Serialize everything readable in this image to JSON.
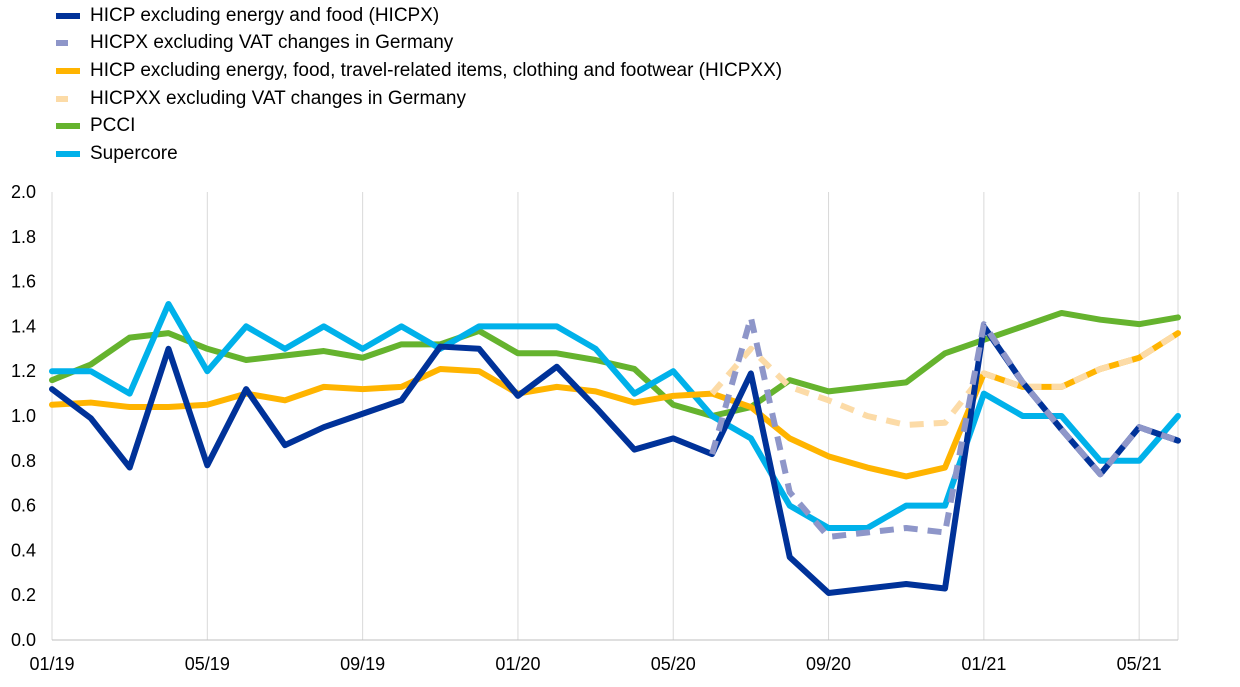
{
  "chart_data": {
    "type": "line",
    "title": "",
    "xlabel": "",
    "ylabel": "",
    "ylim": [
      0,
      2
    ],
    "yticks": [
      "0.0",
      "0.2",
      "0.4",
      "0.6",
      "0.8",
      "1.0",
      "1.2",
      "1.4",
      "1.6",
      "1.8",
      "2.0"
    ],
    "x": [
      "01/19",
      "02/19",
      "03/19",
      "04/19",
      "05/19",
      "06/19",
      "07/19",
      "08/19",
      "09/19",
      "10/19",
      "11/19",
      "12/19",
      "01/20",
      "02/20",
      "03/20",
      "04/20",
      "05/20",
      "06/20",
      "07/20",
      "08/20",
      "09/20",
      "10/20",
      "11/20",
      "12/20",
      "01/21",
      "02/21",
      "03/21",
      "04/21",
      "05/21",
      "06/21"
    ],
    "xtick_labels": [
      "01/19",
      "05/19",
      "09/19",
      "01/20",
      "05/20",
      "09/20",
      "01/21",
      "05/21"
    ],
    "grid": "vertical",
    "legend_position": "top-left",
    "series": [
      {
        "name": "HICP excluding energy and food (HICPX)",
        "color": "#003299",
        "style": "solid",
        "values": [
          1.12,
          0.99,
          0.77,
          1.3,
          0.78,
          1.12,
          0.87,
          0.95,
          1.01,
          1.07,
          1.31,
          1.3,
          1.09,
          1.22,
          1.04,
          0.85,
          0.9,
          0.83,
          1.19,
          0.37,
          0.21,
          0.23,
          0.25,
          0.23,
          1.4,
          1.15,
          0.94,
          0.74,
          0.95,
          0.89
        ]
      },
      {
        "name": "HICPX excluding VAT changes in Germany",
        "color": "#8e96c9",
        "style": "dashed",
        "values": [
          null,
          null,
          null,
          null,
          null,
          null,
          null,
          null,
          null,
          null,
          null,
          null,
          null,
          null,
          null,
          null,
          null,
          0.83,
          1.44,
          0.66,
          0.46,
          0.48,
          0.5,
          0.48,
          1.41,
          1.15,
          0.94,
          0.74,
          0.95,
          0.89
        ]
      },
      {
        "name": "HICP excluding energy, food, travel-related items, clothing and footwear (HICPXX)",
        "color": "#ffb400",
        "style": "solid",
        "values": [
          1.05,
          1.06,
          1.04,
          1.04,
          1.05,
          1.1,
          1.07,
          1.13,
          1.12,
          1.13,
          1.21,
          1.2,
          1.1,
          1.13,
          1.11,
          1.06,
          1.09,
          1.1,
          1.04,
          0.9,
          0.82,
          0.77,
          0.73,
          0.77,
          1.19,
          1.13,
          1.13,
          1.21,
          1.26,
          1.37
        ]
      },
      {
        "name": "HICPXX excluding VAT changes in Germany",
        "color": "#fcdba7",
        "style": "dashed",
        "values": [
          null,
          null,
          null,
          null,
          null,
          null,
          null,
          null,
          null,
          null,
          null,
          null,
          null,
          null,
          null,
          null,
          null,
          1.1,
          1.3,
          1.13,
          1.07,
          1.0,
          0.96,
          0.97,
          1.19,
          1.13,
          1.13,
          1.21,
          1.26,
          1.37
        ]
      },
      {
        "name": "PCCI",
        "color": "#65b32e",
        "style": "solid",
        "values": [
          1.16,
          1.23,
          1.35,
          1.37,
          1.3,
          1.25,
          1.27,
          1.29,
          1.26,
          1.32,
          1.32,
          1.38,
          1.28,
          1.28,
          1.25,
          1.21,
          1.05,
          1.0,
          1.04,
          1.16,
          1.11,
          1.13,
          1.15,
          1.28,
          1.34,
          1.4,
          1.46,
          1.43,
          1.41,
          1.44
        ]
      },
      {
        "name": "Supercore",
        "color": "#00b1ea",
        "style": "solid",
        "values": [
          1.2,
          1.2,
          1.1,
          1.5,
          1.2,
          1.4,
          1.3,
          1.4,
          1.3,
          1.4,
          1.3,
          1.4,
          1.4,
          1.4,
          1.3,
          1.1,
          1.2,
          1.0,
          0.9,
          0.6,
          0.5,
          0.5,
          0.6,
          0.6,
          1.1,
          1.0,
          1.0,
          0.8,
          0.8,
          1.0
        ]
      }
    ]
  }
}
